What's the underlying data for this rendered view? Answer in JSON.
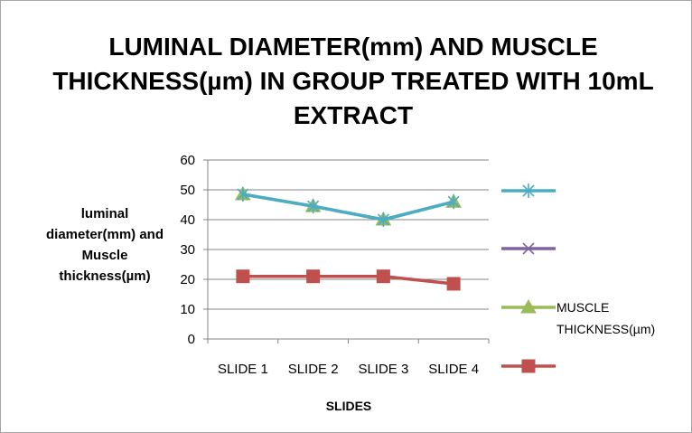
{
  "chart_data": {
    "type": "line",
    "title": "LUMINAL DIAMETER(mm) AND MUSCLE THICKNESS(µm) IN GROUP TREATED WITH 10mL EXTRACT",
    "xlabel": "SLIDES",
    "ylabel": "luminal diameter(mm) and Muscle thickness(µm)",
    "categories": [
      "SLIDE 1",
      "SLIDE 2",
      "SLIDE 3",
      "SLIDE 4"
    ],
    "ylim": [
      0,
      60
    ],
    "yticks": [
      0,
      10,
      20,
      30,
      40,
      50,
      60
    ],
    "grid": "horizontal",
    "legend_position": "right",
    "series": [
      {
        "name": "",
        "color": "#4bacc6",
        "marker": "star",
        "values": [
          48.5,
          44.5,
          40,
          46
        ]
      },
      {
        "name": "",
        "color": "#8064a2",
        "marker": "x",
        "values": [
          null,
          null,
          null,
          null
        ]
      },
      {
        "name": "MUSCLE THICKNESS(µm)",
        "color": "#9bbb59",
        "marker": "triangle",
        "values": [
          48.5,
          44.5,
          40,
          46
        ]
      },
      {
        "name": "",
        "color": "#c0504d",
        "marker": "square",
        "values": [
          21,
          21,
          21,
          18.5
        ]
      }
    ]
  }
}
